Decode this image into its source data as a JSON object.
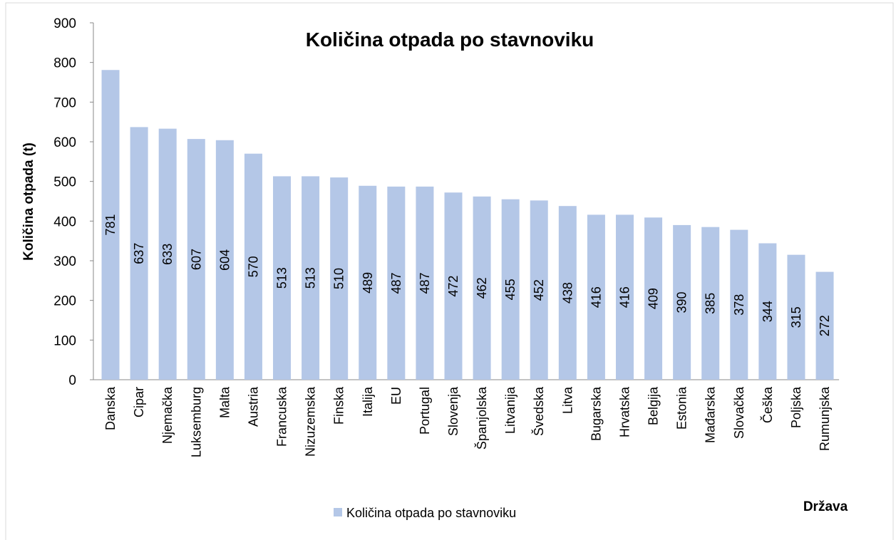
{
  "chart_data": {
    "type": "bar",
    "title": "Količina otpada po stavnoviku",
    "y_label": "Količina otpada (t)",
    "x_label": "Država",
    "categories": [
      "Danska",
      "Cipar",
      "Njemačka",
      "Luksemburg",
      "Malta",
      "Austria",
      "Francuska",
      "Nizuzemska",
      "Finska",
      "Italija",
      "EU",
      "Portugal",
      "Slovenja",
      "Španjolska",
      "Litvanija",
      "Švedska",
      "Litva",
      "Bugarska",
      "Hrvatska",
      "Belgija",
      "Estonia",
      "Mađarska",
      "Slovačka",
      "Češka",
      "Poljska",
      "Rumunjska"
    ],
    "series": [
      {
        "name": "Količina otpada po stavnoviku",
        "color": "#b4c7e7",
        "values": [
          781,
          637,
          633,
          607,
          604,
          570,
          513,
          513,
          510,
          489,
          487,
          487,
          472,
          462,
          455,
          452,
          438,
          416,
          416,
          409,
          390,
          385,
          378,
          344,
          315,
          272
        ]
      }
    ],
    "ylim": [
      0,
      900
    ],
    "yticks": [
      0,
      100,
      200,
      300,
      400,
      500,
      600,
      700,
      800,
      900
    ],
    "grid": false,
    "legend": "bottom"
  }
}
